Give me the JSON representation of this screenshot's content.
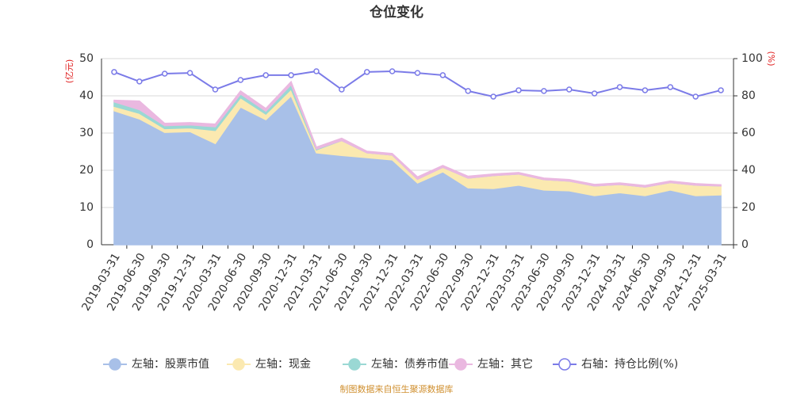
{
  "chart_data": {
    "type": "area",
    "title": "仓位变化",
    "y_label": "(亿元)",
    "y2_label": "(%)",
    "source": "制图数据来自恒生聚源数据库",
    "categories": [
      "2019-03-31",
      "2019-06-30",
      "2019-09-30",
      "2019-12-31",
      "2020-03-31",
      "2020-06-30",
      "2020-09-30",
      "2020-12-31",
      "2021-03-31",
      "2021-06-30",
      "2021-09-30",
      "2021-12-31",
      "2022-03-31",
      "2022-06-30",
      "2022-09-30",
      "2022-12-31",
      "2023-03-31",
      "2023-06-30",
      "2023-09-30",
      "2023-12-31",
      "2024-03-31",
      "2024-06-30",
      "2024-09-30",
      "2024-12-31",
      "2025-03-31"
    ],
    "ylim": [
      0,
      50
    ],
    "yticks": [
      0,
      10,
      20,
      30,
      40,
      50
    ],
    "y2lim": [
      0,
      100
    ],
    "y2ticks": [
      0,
      20,
      40,
      60,
      80,
      100
    ],
    "grid": true,
    "stacked": true,
    "series": [
      {
        "name": "左轴：股票市值",
        "color": "#a8c0e8",
        "values": [
          36.0,
          33.8,
          30.2,
          30.4,
          27.2,
          37.0,
          33.6,
          40.0,
          24.7,
          24.0,
          23.4,
          22.8,
          16.6,
          19.6,
          15.3,
          15.1,
          16.0,
          14.7,
          14.5,
          13.2,
          14.0,
          13.2,
          14.7,
          13.2,
          13.4
        ]
      },
      {
        "name": "左轴：现金",
        "color": "#fbe9b0",
        "values": [
          1.2,
          1.5,
          1.0,
          1.0,
          3.5,
          2.5,
          1.5,
          1.8,
          0.8,
          4.0,
          1.3,
          1.3,
          1.0,
          1.2,
          2.6,
          3.5,
          3.0,
          2.8,
          2.6,
          2.6,
          2.2,
          2.3,
          2.0,
          2.8,
          2.4
        ]
      },
      {
        "name": "左轴：债券市值",
        "color": "#9ad8d4",
        "values": [
          1.2,
          1.0,
          0.8,
          0.8,
          1.0,
          1.0,
          0.8,
          1.2,
          0.2,
          0,
          0,
          0,
          0,
          0,
          0,
          0,
          0,
          0,
          0,
          0,
          0,
          0,
          0,
          0,
          0
        ]
      },
      {
        "name": "左轴：其它",
        "color": "#eab8e0",
        "values": [
          0.4,
          2.3,
          0.6,
          0.6,
          0.7,
          0.8,
          0.7,
          0.8,
          0.5,
          0.6,
          0.4,
          0.4,
          0.6,
          0.5,
          0.5,
          0.4,
          0.4,
          0.4,
          0.4,
          0.4,
          0.4,
          0.4,
          0.4,
          0.4,
          0.3
        ]
      },
      {
        "name": "右轴：持仓比例(%)",
        "color": "#7b7be8",
        "type": "line",
        "axis": "y2",
        "values": [
          92.8,
          87.7,
          91.9,
          92.3,
          83.4,
          88.5,
          91.1,
          91.1,
          93.2,
          83.4,
          92.8,
          93.2,
          92.3,
          91.1,
          82.6,
          79.6,
          83.0,
          82.6,
          83.4,
          81.3,
          84.7,
          83.0,
          84.7,
          79.6,
          83.0
        ]
      }
    ]
  }
}
